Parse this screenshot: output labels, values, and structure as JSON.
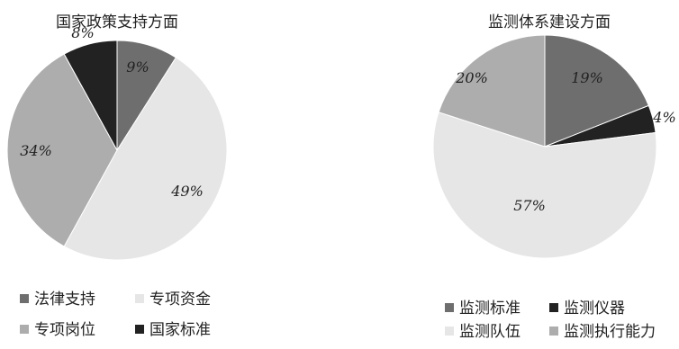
{
  "chart_data": [
    {
      "type": "pie",
      "title": "国家政策支持方面",
      "categories": [
        "法律支持",
        "专项资金",
        "专项岗位",
        "国家标准"
      ],
      "values": [
        9,
        49,
        34,
        8
      ],
      "value_labels": [
        "9%",
        "49%",
        "34%",
        "8%"
      ],
      "colors": [
        "#6e6e6e",
        "#e6e6e6",
        "#adadad",
        "#222222"
      ],
      "legend": {
        "placement": "bottom",
        "items": [
          {
            "label": "法律支持",
            "color": "#6e6e6e"
          },
          {
            "label": "专项资金",
            "color": "#e6e6e6"
          },
          {
            "label": "专项岗位",
            "color": "#adadad"
          },
          {
            "label": "国家标准",
            "color": "#222222"
          }
        ]
      }
    },
    {
      "type": "pie",
      "title": "监测体系建设方面",
      "categories": [
        "监测标准",
        "监测仪器",
        "监测队伍",
        "监测执行能力"
      ],
      "values": [
        19,
        4,
        57,
        20
      ],
      "value_labels": [
        "19%",
        "4%",
        "57%",
        "20%"
      ],
      "colors": [
        "#6e6e6e",
        "#222222",
        "#e6e6e6",
        "#adadad"
      ],
      "legend": {
        "placement": "bottom",
        "items": [
          {
            "label": "监测标准",
            "color": "#6e6e6e"
          },
          {
            "label": "监测仪器",
            "color": "#222222"
          },
          {
            "label": "监测队伍",
            "color": "#e6e6e6"
          },
          {
            "label": "监测执行能力",
            "color": "#adadad"
          }
        ]
      }
    }
  ]
}
